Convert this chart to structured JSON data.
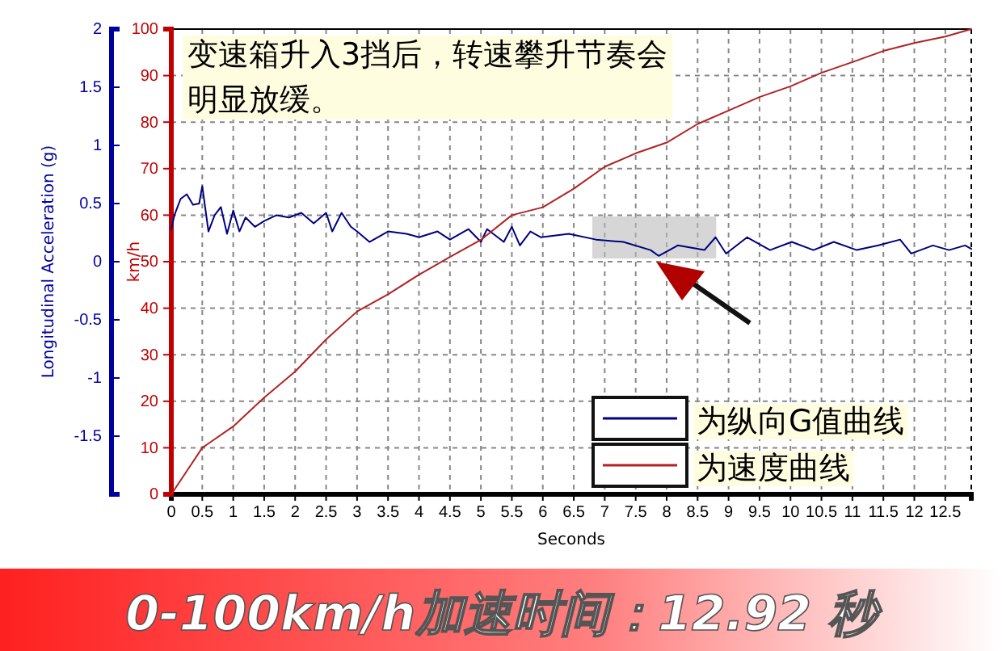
{
  "chart_data": {
    "type": "line",
    "xlabel": "Seconds",
    "ylabel": "km/h",
    "y2label": "Longitudinal Acceleration (g)",
    "annotations": [
      "变速箱升入3挡后，转速攀升节奏会明显放缓。",
      "0-100km/h加速时间：12.92 秒"
    ],
    "xlim": [
      0,
      12.92
    ],
    "xticks": [
      0,
      0.5,
      1,
      1.5,
      2,
      2.5,
      3,
      3.5,
      4,
      4.5,
      5,
      5.5,
      6,
      6.5,
      7,
      7.5,
      8,
      8.5,
      9,
      9.5,
      10,
      10.5,
      11,
      11.5,
      12,
      12.5
    ],
    "ylim": [
      0,
      100
    ],
    "yticks": [
      0,
      10,
      20,
      30,
      40,
      50,
      60,
      70,
      80,
      90,
      100
    ],
    "y2lim": [
      -2,
      2
    ],
    "y2ticks": [
      -1.5,
      -1,
      -0.5,
      0,
      0.5,
      1,
      1.5,
      2
    ],
    "bands": [
      {
        "axis": "x",
        "from": 6.8,
        "to": 8.8,
        "color": "#bbbbbb"
      }
    ],
    "grid": true,
    "legend": "bottom right",
    "marker": "none",
    "line_style": "solid",
    "series": [
      {
        "name": "为纵向G值曲线",
        "color": "#000080",
        "axis": "y2",
        "x": [
          0,
          0.05,
          0.15,
          0.25,
          0.35,
          0.45,
          0.5,
          0.6,
          0.7,
          0.8,
          0.9,
          1.0,
          1.1,
          1.2,
          1.35,
          1.5,
          1.7,
          1.9,
          2.1,
          2.3,
          2.5,
          2.6,
          2.75,
          2.9,
          3.0,
          3.2,
          3.5,
          3.8,
          4.0,
          4.3,
          4.5,
          4.8,
          5.0,
          5.1,
          5.37,
          5.5,
          5.63,
          5.8,
          5.97,
          6.42,
          6.86,
          7.3,
          7.74,
          7.87,
          8.18,
          8.61,
          8.79,
          8.96,
          9.3,
          9.67,
          10.02,
          10.37,
          10.7,
          11.07,
          11.42,
          11.77,
          11.95,
          12.3,
          12.56,
          12.82,
          12.92
        ],
        "values": [
          0.28,
          0.4,
          0.54,
          0.58,
          0.49,
          0.5,
          0.65,
          0.26,
          0.4,
          0.47,
          0.24,
          0.44,
          0.26,
          0.38,
          0.3,
          0.35,
          0.4,
          0.38,
          0.42,
          0.33,
          0.42,
          0.26,
          0.42,
          0.3,
          0.26,
          0.17,
          0.26,
          0.24,
          0.21,
          0.26,
          0.19,
          0.28,
          0.17,
          0.28,
          0.17,
          0.3,
          0.14,
          0.26,
          0.21,
          0.24,
          0.19,
          0.17,
          0.1,
          0.05,
          0.14,
          0.1,
          0.21,
          0.07,
          0.21,
          0.1,
          0.17,
          0.1,
          0.17,
          0.1,
          0.14,
          0.19,
          0.07,
          0.14,
          0.1,
          0.14,
          0.11
        ]
      },
      {
        "name": "为速度曲线",
        "color": "#b22222",
        "x": [
          0,
          0.1,
          0.25,
          0.5,
          1,
          1.5,
          2,
          2.5,
          3,
          3.5,
          4,
          4.5,
          5,
          5.5,
          6,
          6.5,
          7,
          7.5,
          8,
          8.5,
          9,
          9.5,
          10,
          10.5,
          11,
          11.5,
          12,
          12.5,
          12.92
        ],
        "values": [
          0,
          2,
          5,
          10,
          14.6,
          20.8,
          26.4,
          33.3,
          39.3,
          43,
          47.2,
          51,
          54.7,
          60,
          61.7,
          65.7,
          70.4,
          73.3,
          75.6,
          79.6,
          82.5,
          85.4,
          87.7,
          90.6,
          92.9,
          95.3,
          97,
          98.4,
          100
        ]
      }
    ]
  }
}
